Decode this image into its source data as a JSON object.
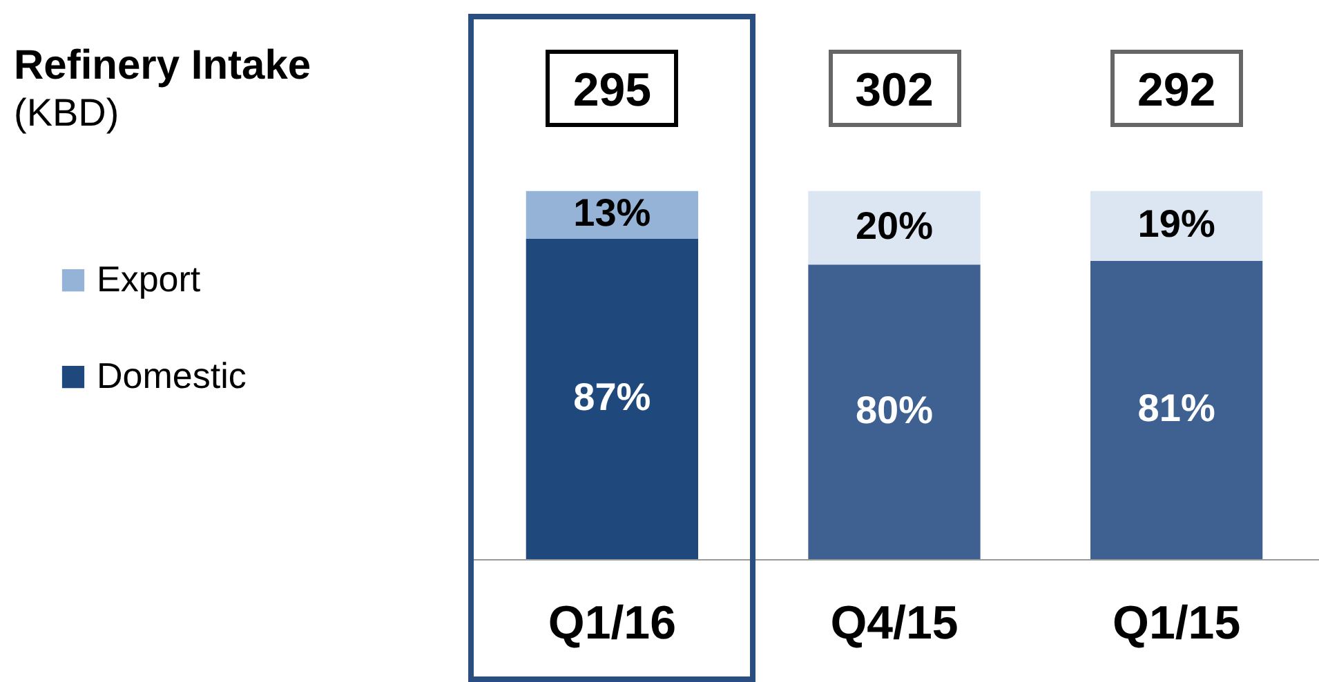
{
  "chart_data": {
    "type": "bar",
    "title": "Refinery Intake",
    "subtitle": "(KBD)",
    "stacked": true,
    "legend": "left",
    "categories": [
      "Q1/16",
      "Q4/15",
      "Q1/15"
    ],
    "series": [
      {
        "name": "Domestic",
        "color": "#1f497d",
        "colors": [
          "#1f497d",
          "#3e6191",
          "#3e6191"
        ],
        "values": [
          87,
          80,
          81
        ],
        "value_labels": [
          "87%",
          "80%",
          "81%"
        ]
      },
      {
        "name": "Export",
        "color": "#95b3d7",
        "colors": [
          "#95b3d7",
          "#dce6f2",
          "#dce6f2"
        ],
        "values": [
          13,
          20,
          19
        ],
        "value_labels": [
          "13%",
          "20%",
          "19%"
        ]
      }
    ],
    "annotations": [
      "295",
      "302",
      "292"
    ]
  }
}
